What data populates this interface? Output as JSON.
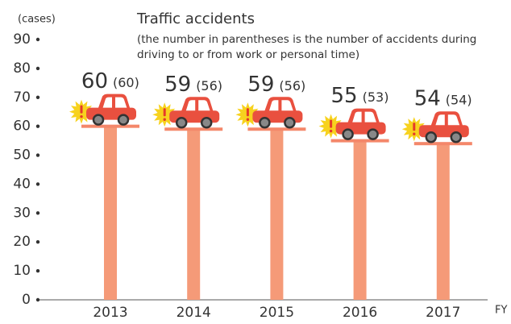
{
  "chart_data": {
    "type": "bar",
    "y_axis_label": "(cases)",
    "x_axis_label": "FY",
    "series": [
      {
        "name": "Traffic accidents",
        "color": "#f59a78",
        "note": [
          "(the number in parentheses is the number of accidents during",
          "driving to or from work or personal time)"
        ],
        "values": [
          60,
          59,
          59,
          55,
          54
        ],
        "sub_value_labels": [
          "(60)",
          "(56)",
          "(56)",
          "(53)",
          "(54)"
        ]
      }
    ],
    "categories": [
      "2013",
      "2014",
      "2015",
      "2016",
      "2017"
    ],
    "ylim": [
      0,
      90
    ],
    "yticks": [
      0,
      10,
      20,
      30,
      40,
      50,
      60,
      70,
      80,
      90
    ]
  }
}
